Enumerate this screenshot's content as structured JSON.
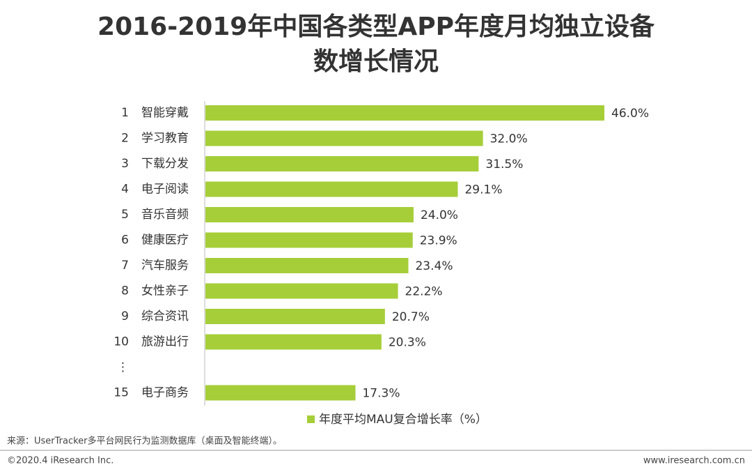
{
  "chart_data": {
    "type": "hbar",
    "title": [
      "2016-2019年中国各类型APP年度月均独立设备",
      "数增长情况"
    ],
    "ranks": [
      1,
      2,
      3,
      4,
      5,
      6,
      7,
      8,
      9,
      10,
      "⋮",
      15
    ],
    "categories": [
      "智能穿戴",
      "学习教育",
      "下载分发",
      "电子阅读",
      "音乐音频",
      "健康医疗",
      "汽车服务",
      "女性亲子",
      "综合资讯",
      "旅游出行",
      null,
      "电子商务"
    ],
    "series": [
      {
        "name": "年度平均MAU复合增长率（%）",
        "color": "#a6ce39",
        "values": [
          46.0,
          32.0,
          31.5,
          29.1,
          24.0,
          23.9,
          23.4,
          22.2,
          20.7,
          20.3,
          null,
          17.3
        ],
        "value_labels": [
          "46.0%",
          "32.0%",
          "31.5%",
          "29.1%",
          "24.0%",
          "23.9%",
          "23.4%",
          "22.2%",
          "20.7%",
          "20.3%",
          null,
          "17.3%"
        ]
      }
    ],
    "legend": "bottom"
  },
  "footer": {
    "source": "来源：UserTracker多平台网民行为监测数据库（桌面及智能终端）。",
    "copyright": "©2020.4 iResearch Inc.",
    "website": "www.iresearch.com.cn"
  }
}
